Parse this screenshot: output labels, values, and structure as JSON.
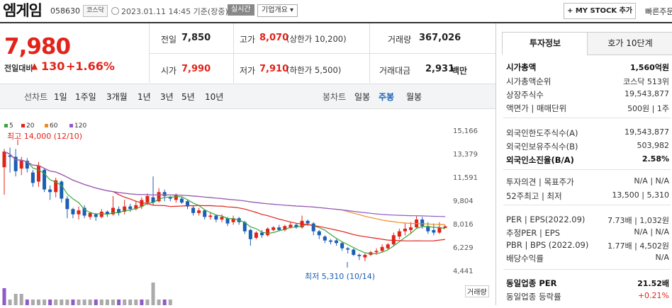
{
  "header": {
    "name": "엠게임",
    "code": "058630",
    "market": "코스닥",
    "timestamp": "2023.01.11 14:45  기준(장중)",
    "realtime": "실시간",
    "overview": "기업개요 ▾",
    "mystock": "+ MY STOCK 추가",
    "quick": "빠른주문"
  },
  "price": {
    "current": "7,980",
    "change_label": "전일대비",
    "up_icon": "▲",
    "change": "130",
    "rate": "+1.66%"
  },
  "quote": {
    "prev_label": "전일",
    "prev": "7,850",
    "high_label": "고가",
    "high": "8,070",
    "upper": "(상한가 10,200)",
    "volume_label": "거래량",
    "volume": "367,026",
    "open_label": "시가",
    "open": "7,990",
    "low_label": "저가",
    "low": "7,910",
    "lower": "(하한가 5,500)",
    "amount_label": "거래대금",
    "amount": "2,931",
    "amount_unit": "백만"
  },
  "periods": {
    "line_label": "선차트",
    "line": [
      "1일",
      "1주일",
      "3개월",
      "1년",
      "3년",
      "5년",
      "10년"
    ],
    "candle_label": "봉차트",
    "candle": [
      "일봉",
      "주봉",
      "월봉"
    ],
    "candle_active": "주봉"
  },
  "chart_data": {
    "type": "candlestick",
    "legend": [
      {
        "name": "5",
        "color": "#3aa63a"
      },
      {
        "name": "20",
        "color": "#e2231a"
      },
      {
        "name": "60",
        "color": "#f08c1c"
      },
      {
        "name": "120",
        "color": "#8e5bc9"
      }
    ],
    "y_ticks": [
      "15,166",
      "13,379",
      "11,591",
      "9,804",
      "8,016",
      "6,229",
      "4,441"
    ],
    "high_note": "최고 14,000 (12/10)",
    "low_note": "최저 5,310 (10/14)",
    "volume_label": "거래량",
    "candles": [
      [
        12500,
        13700,
        10400,
        13900
      ],
      [
        13400,
        13300,
        12100,
        14000
      ],
      [
        13300,
        12200,
        11800,
        13900
      ],
      [
        12400,
        13000,
        11900,
        13300
      ],
      [
        13000,
        12400,
        12100,
        13200
      ],
      [
        12100,
        11300,
        11000,
        12300
      ],
      [
        11400,
        12600,
        11000,
        12900
      ],
      [
        12300,
        10800,
        10600,
        12400
      ],
      [
        10800,
        10600,
        10000,
        11100
      ],
      [
        10600,
        11500,
        10200,
        11700
      ],
      [
        11400,
        10100,
        9800,
        11500
      ],
      [
        10100,
        9300,
        8600,
        10300
      ],
      [
        9300,
        8900,
        8600,
        9400
      ],
      [
        8900,
        9200,
        8500,
        9500
      ],
      [
        9400,
        8800,
        8600,
        9600
      ],
      [
        8700,
        9000,
        8500,
        9100
      ],
      [
        8900,
        8700,
        8400,
        9000
      ],
      [
        8700,
        9100,
        8600,
        9300
      ],
      [
        9100,
        8900,
        8700,
        9200
      ],
      [
        8900,
        9400,
        8800,
        10300
      ],
      [
        9300,
        9000,
        8800,
        9500
      ],
      [
        9100,
        9500,
        8900,
        10000
      ],
      [
        9500,
        9300,
        9100,
        9700
      ],
      [
        9300,
        9600,
        9200,
        9900
      ],
      [
        9500,
        10000,
        9300,
        10200
      ],
      [
        9800,
        10300,
        9600,
        10500
      ],
      [
        10200,
        9800,
        9600,
        11800
      ],
      [
        9900,
        10600,
        9800,
        10900
      ],
      [
        10600,
        10300,
        9900,
        10800
      ],
      [
        10200,
        10100,
        9900,
        10300
      ],
      [
        10000,
        10400,
        9800,
        10500
      ],
      [
        10100,
        9800,
        9700,
        10200
      ],
      [
        9900,
        9500,
        9300,
        10000
      ],
      [
        9400,
        9000,
        8800,
        9600
      ],
      [
        9000,
        9200,
        8800,
        9400
      ],
      [
        9200,
        8700,
        8500,
        9300
      ],
      [
        8700,
        8800,
        8500,
        9000
      ],
      [
        8800,
        8500,
        8300,
        8900
      ],
      [
        8500,
        8700,
        8300,
        8900
      ],
      [
        8600,
        8200,
        8000,
        8700
      ],
      [
        8300,
        8600,
        8100,
        8800
      ],
      [
        8600,
        8300,
        8100,
        8700
      ],
      [
        8300,
        7600,
        7400,
        8400
      ],
      [
        7700,
        7000,
        6500,
        7800
      ],
      [
        7100,
        7500,
        7000,
        7600
      ],
      [
        7500,
        7300,
        7100,
        7700
      ],
      [
        7300,
        7800,
        7200,
        7900
      ],
      [
        7700,
        7900,
        7600,
        8000
      ],
      [
        7900,
        7700,
        7600,
        8100
      ],
      [
        7700,
        8000,
        7600,
        8100
      ],
      [
        7900,
        8100,
        7800,
        8300
      ],
      [
        8100,
        7900,
        7800,
        8200
      ],
      [
        7900,
        8400,
        7800,
        8800
      ],
      [
        8400,
        8200,
        8000,
        8500
      ],
      [
        8200,
        7600,
        7300,
        8300
      ],
      [
        7600,
        7300,
        7000,
        7700
      ],
      [
        7200,
        6900,
        6700,
        7300
      ],
      [
        6900,
        6800,
        6600,
        7000
      ],
      [
        6900,
        6700,
        6500,
        7000
      ],
      [
        6700,
        6300,
        6100,
        6800
      ],
      [
        6300,
        6200,
        5900,
        6400
      ],
      [
        6200,
        5800,
        5700,
        6300
      ],
      [
        5800,
        5700,
        5400,
        5900
      ],
      [
        5600,
        5800,
        5310,
        5900
      ],
      [
        5800,
        6000,
        5700,
        6100
      ],
      [
        6000,
        6100,
        5800,
        6300
      ],
      [
        6100,
        6400,
        6000,
        6600
      ],
      [
        6300,
        6600,
        6200,
        6700
      ],
      [
        6600,
        7300,
        6500,
        7500
      ],
      [
        7200,
        7600,
        7000,
        7800
      ],
      [
        7600,
        7800,
        7300,
        8200
      ],
      [
        7700,
        7900,
        7400,
        8300
      ],
      [
        7900,
        8500,
        7800,
        8800
      ],
      [
        8500,
        8000,
        7800,
        8700
      ],
      [
        8000,
        7600,
        7400,
        8300
      ],
      [
        7700,
        7500,
        7300,
        8200
      ],
      [
        7500,
        7900,
        7400,
        8300
      ],
      [
        7850,
        7980,
        7910,
        8070
      ]
    ]
  },
  "panel": {
    "tab_invest": "투자정보",
    "tab_orderbook": "호가 10단계",
    "rows": [
      {
        "label": "시가총액",
        "value": "1,560억원",
        "bold": true
      },
      {
        "label": "시가총액순위",
        "value": "코스닥 513위"
      },
      {
        "label": "상장주식수",
        "value": "19,543,877"
      },
      {
        "label": "액면가 | 매매단위",
        "value": "500원 | 1주"
      },
      {
        "label": "외국인한도주식수(A)",
        "value": "19,543,877"
      },
      {
        "label": "외국인보유주식수(B)",
        "value": "503,982"
      },
      {
        "label": "외국인소진율(B/A)",
        "value": "2.58%",
        "bold": true
      },
      {
        "label": "투자의견 | 목표주가",
        "value": "N/A | N/A"
      },
      {
        "label": "52주최고 | 최저",
        "value": "13,500 | 5,310"
      },
      {
        "label": "PER | EPS(2022.09)",
        "value": "7.73배 | 1,032원"
      },
      {
        "label": "추정PER | EPS",
        "value": "N/A | N/A"
      },
      {
        "label": "PBR | BPS (2022.09)",
        "value": "1.77배 | 4,502원"
      },
      {
        "label": "배당수익률",
        "value": "N/A"
      },
      {
        "label": "동일업종 PER",
        "value": "21.52배",
        "bold": true
      },
      {
        "label": "동일업종 등락률",
        "value": "+0.21%",
        "red": true
      }
    ]
  }
}
